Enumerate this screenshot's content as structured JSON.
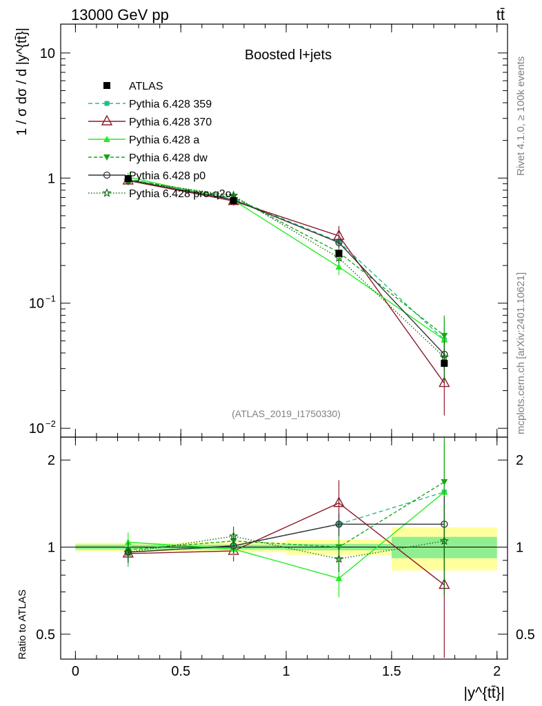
{
  "header": {
    "left": "13000 GeV pp",
    "right": "tt̄"
  },
  "side_text": {
    "rivet": "Rivet 4.1.0, ≥ 100k events",
    "mcplots": "mcplots.cern.ch [arXiv:2401.10621]"
  },
  "chart_data": {
    "type": "line",
    "title": "Boosted l+jets",
    "analysis": "(ATLAS_2019_I1750330)",
    "xlabel": "|y^{tt̄}|",
    "ylabel_main": "1 / σ dσ / d |y^{tt̄}|",
    "ylabel_ratio": "Ratio to ATLAS",
    "x_ticks": [
      "0",
      "0.5",
      "1",
      "1.5",
      "2"
    ],
    "main_y_ticks": [
      {
        "value": 10,
        "label": "10"
      },
      {
        "value": 1,
        "label": "1"
      },
      {
        "value": 0.1,
        "label": "10",
        "exp": "−1"
      },
      {
        "value": 0.01,
        "label": "10",
        "exp": "−2"
      }
    ],
    "ratio_y_ticks": [
      {
        "value": 0.5,
        "label": "0.5"
      },
      {
        "value": 1,
        "label": "1"
      },
      {
        "value": 2,
        "label": "2"
      }
    ],
    "xlim": [
      -0.07,
      2.05
    ],
    "ylim_main": [
      0.0085,
      17
    ],
    "ylim_ratio": [
      0.41,
      2.4
    ],
    "x": [
      0.25,
      0.75,
      1.25,
      1.75
    ],
    "bins": [
      [
        0,
        0.5
      ],
      [
        0.5,
        1.0
      ],
      [
        1.0,
        1.5
      ],
      [
        1.5,
        2.0
      ]
    ],
    "data": {
      "name": "ATLAS",
      "values": [
        0.99,
        0.66,
        0.25,
        0.033
      ],
      "stat_band_ratio": [
        0.02,
        0.02,
        0.025,
        0.085
      ],
      "total_band_ratio": [
        0.035,
        0.04,
        0.06,
        0.17
      ]
    },
    "series": [
      {
        "name": "Pythia 6.428 359",
        "color": "#1fbf7f",
        "dash": "6,4",
        "marker": "square",
        "values": [
          0.985,
          0.685,
          0.31,
          0.051
        ],
        "ratio": [
          0.96,
          1.01,
          1.2,
          1.55
        ],
        "err": [
          0.11,
          0.07,
          0.09,
          0.35
        ]
      },
      {
        "name": "Pythia 6.428 370",
        "color": "#8b1a2b",
        "dash": "",
        "marker": "triangle-open",
        "values": [
          0.955,
          0.655,
          0.345,
          0.023
        ],
        "ratio": [
          0.95,
          0.97,
          1.42,
          0.74
        ],
        "err": [
          0.07,
          0.08,
          0.2,
          0.45
        ]
      },
      {
        "name": "Pythia 6.428 a",
        "color": "#22ee22",
        "dash": "",
        "marker": "triangle",
        "values": [
          1.02,
          0.665,
          0.195,
          0.051
        ],
        "ratio": [
          1.04,
          0.985,
          0.78,
          1.55
        ],
        "err": [
          0.08,
          0.06,
          0.14,
          0.5
        ]
      },
      {
        "name": "Pythia 6.428 dw",
        "color": "#1aa61a",
        "dash": "5,3",
        "marker": "triangle-down",
        "values": [
          0.97,
          0.705,
          0.255,
          0.055
        ],
        "ratio": [
          0.98,
          1.05,
          1.0,
          1.68
        ],
        "err": [
          0.08,
          0.07,
          0.12,
          0.45
        ]
      },
      {
        "name": "Pythia 6.428 p0",
        "color": "#333333",
        "dash": "",
        "marker": "circle-open",
        "values": [
          0.965,
          0.67,
          0.305,
          0.039
        ],
        "ratio": [
          0.96,
          1.01,
          1.2,
          1.2
        ],
        "err": [
          0.06,
          0.06,
          0.09,
          0.25
        ]
      },
      {
        "name": "Pythia 6.428 pro-q2o",
        "color": "#0f6b0f",
        "dash": "1.5,2.5",
        "marker": "star",
        "values": [
          0.955,
          0.725,
          0.23,
          0.037
        ],
        "ratio": [
          0.96,
          1.09,
          0.91,
          1.05
        ],
        "err": [
          0.08,
          0.08,
          0.1,
          0.35
        ]
      }
    ]
  }
}
